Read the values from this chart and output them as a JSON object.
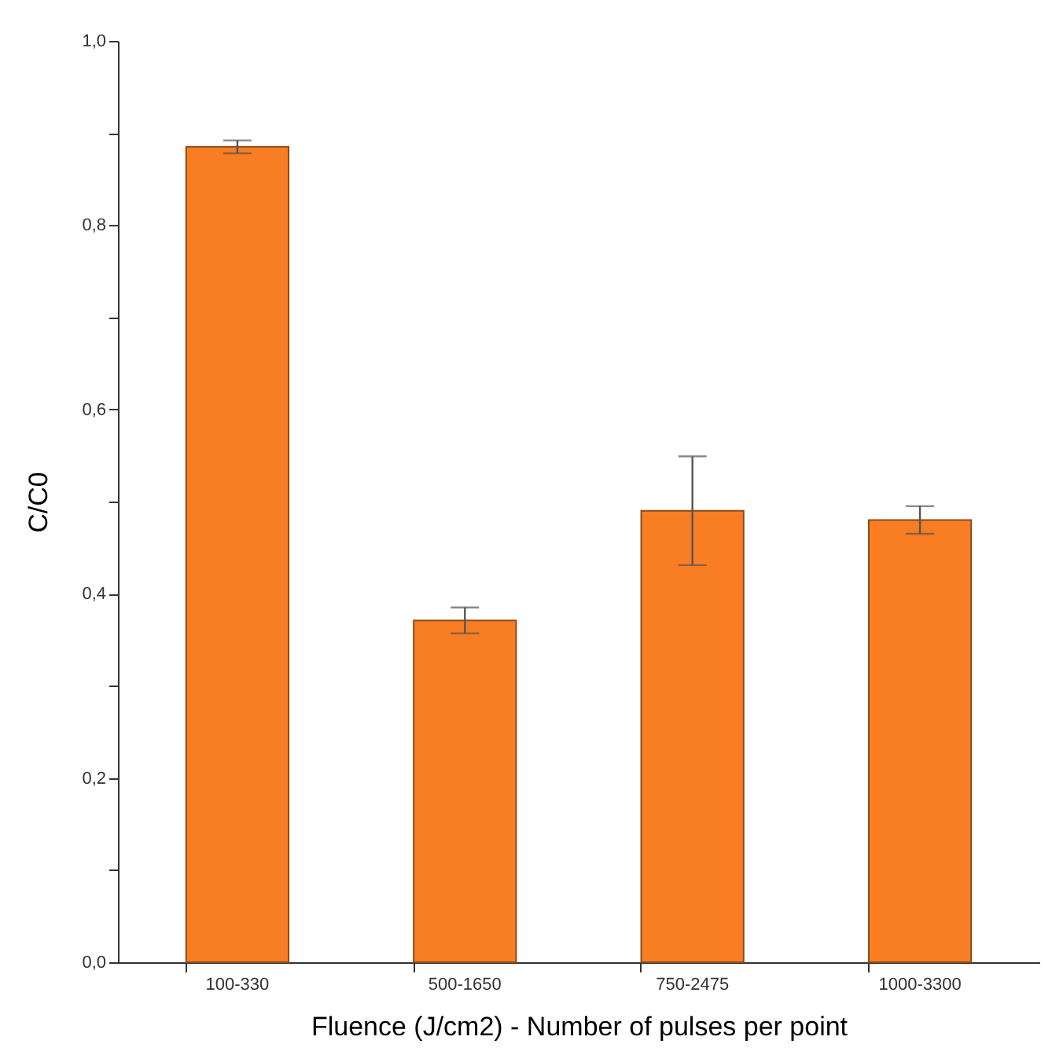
{
  "chart_data": {
    "type": "bar",
    "xlabel": "Fluence (J/cm2) - Number of pulses per point",
    "ylabel": "C/C0",
    "categories": [
      "100-330",
      "500-1650",
      "750-2475",
      "1000-3300"
    ],
    "values": [
      0.885,
      0.371,
      0.49,
      0.48
    ],
    "errors": [
      0.007,
      0.014,
      0.059,
      0.015
    ],
    "color": "#f97d23",
    "ylim": [
      0,
      1
    ],
    "yticks": [
      {
        "value": 0,
        "label": "0,0"
      },
      {
        "value": 0.1,
        "label": null
      },
      {
        "value": 0.2,
        "label": "0,2"
      },
      {
        "value": 0.3,
        "label": null
      },
      {
        "value": 0.4,
        "label": "0,4"
      },
      {
        "value": 0.5,
        "label": null
      },
      {
        "value": 0.6,
        "label": "0,6"
      },
      {
        "value": 0.7,
        "label": null
      },
      {
        "value": 0.8,
        "label": "0,8"
      },
      {
        "value": 0.9,
        "label": null
      },
      {
        "value": 1,
        "label": "1,0"
      }
    ],
    "grid": false
  }
}
